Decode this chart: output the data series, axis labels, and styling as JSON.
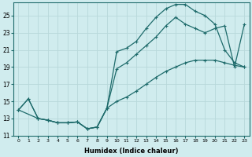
{
  "xlabel": "Humidex (Indice chaleur)",
  "bg_color": "#d0ecee",
  "grid_color": "#b8d8da",
  "line_color": "#1e6b6b",
  "xlim": [
    -0.5,
    23.5
  ],
  "ylim": [
    11,
    26.5
  ],
  "xticks": [
    0,
    1,
    2,
    3,
    4,
    5,
    6,
    7,
    8,
    9,
    10,
    11,
    12,
    13,
    14,
    15,
    16,
    17,
    18,
    19,
    20,
    21,
    22,
    23
  ],
  "yticks": [
    11,
    13,
    15,
    17,
    19,
    21,
    23,
    25
  ],
  "curve_top": {
    "x": [
      0,
      1,
      2,
      3,
      4,
      5,
      6,
      7,
      8,
      9,
      10,
      11,
      12,
      13,
      14,
      15,
      16,
      17,
      18,
      19,
      20,
      21,
      22,
      23
    ],
    "y": [
      14.0,
      15.3,
      13.0,
      12.8,
      12.5,
      12.5,
      12.6,
      11.8,
      12.0,
      14.2,
      20.8,
      21.2,
      22.0,
      23.5,
      24.8,
      25.8,
      26.3,
      26.3,
      25.5,
      25.0,
      24.0,
      21.0,
      19.5,
      19.0
    ]
  },
  "curve_mid": {
    "x": [
      0,
      2,
      3,
      4,
      5,
      6,
      7,
      8,
      9,
      10,
      11,
      12,
      13,
      14,
      15,
      16,
      17,
      18,
      19,
      20,
      21,
      22,
      23
    ],
    "y": [
      14.0,
      13.0,
      12.8,
      12.5,
      12.5,
      12.6,
      11.8,
      12.0,
      14.2,
      18.8,
      19.5,
      20.5,
      21.5,
      22.5,
      23.8,
      24.8,
      24.0,
      23.5,
      23.0,
      23.5,
      23.8,
      19.0,
      24.0
    ]
  },
  "curve_bot": {
    "x": [
      0,
      1,
      2,
      3,
      4,
      5,
      6,
      7,
      8,
      9,
      10,
      11,
      12,
      13,
      14,
      15,
      16,
      17,
      18,
      19,
      20,
      21,
      22,
      23
    ],
    "y": [
      14.0,
      15.3,
      13.0,
      12.8,
      12.5,
      12.5,
      12.6,
      11.8,
      12.0,
      14.2,
      15.0,
      15.5,
      16.2,
      17.0,
      17.8,
      18.5,
      19.0,
      19.5,
      19.8,
      19.8,
      19.8,
      19.5,
      19.2,
      19.0
    ]
  }
}
